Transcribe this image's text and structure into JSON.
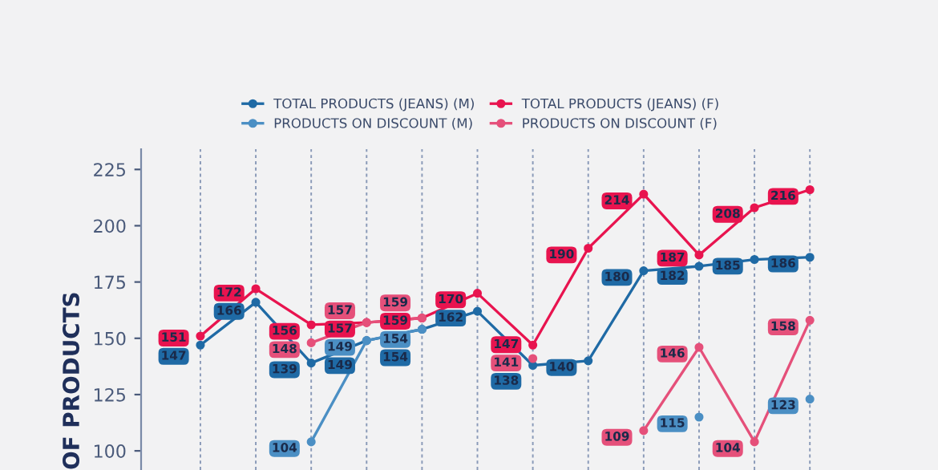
{
  "chart_data": {
    "type": "line",
    "ylabel": "OF PRODUCTS",
    "categories": [
      null,
      null,
      null,
      null,
      null,
      null,
      null,
      null,
      null,
      null,
      null,
      null
    ],
    "series": [
      {
        "name": "TOTAL PRODUCTS (JEANS) (M)",
        "color": "#1f6aa5",
        "values": [
          147,
          166,
          139,
          149,
          154,
          162,
          138,
          140,
          180,
          182,
          185,
          186
        ]
      },
      {
        "name": "PRODUCTS ON DISCOUNT (M)",
        "color": "#4b8fc4",
        "values": [
          null,
          null,
          104,
          149,
          154,
          null,
          null,
          null,
          null,
          115,
          null,
          123
        ]
      },
      {
        "name": "TOTAL PRODUCTS (JEANS) (F)",
        "color": "#e8144f",
        "values": [
          151,
          172,
          156,
          157,
          159,
          170,
          147,
          190,
          214,
          187,
          208,
          216
        ]
      },
      {
        "name": "PRODUCTS ON DISCOUNT (F)",
        "color": "#e5507a",
        "values": [
          null,
          null,
          148,
          157,
          159,
          null,
          141,
          null,
          109,
          146,
          104,
          158
        ]
      }
    ],
    "ylim": [
      91.5,
      234
    ],
    "yticks": [
      100,
      125,
      150,
      175,
      200,
      225
    ],
    "tick_labels": "y",
    "grid": "x",
    "legend": "top",
    "marker": "circle",
    "line_style": "solid",
    "data_labels": true
  }
}
